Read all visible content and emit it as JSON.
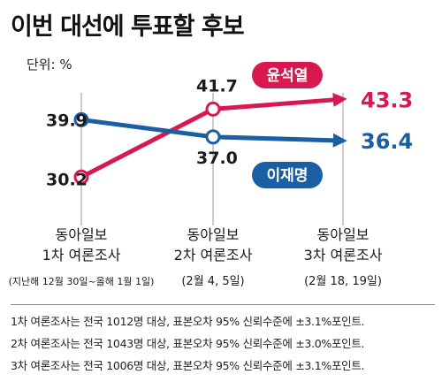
{
  "title": "이번 대선에 투표할 후보",
  "unit": "단위: %",
  "colors": {
    "yoon": "#d7194f",
    "lee": "#1a5fa3",
    "grid": "#999999",
    "text": "#1a1a1a"
  },
  "chart_data": {
    "type": "line",
    "categories": [
      {
        "line1": "동아일보",
        "line2": "1차 여론조사",
        "date": "(지난해 12월 30일~올해 1월 1일)"
      },
      {
        "line1": "동아일보",
        "line2": "2차 여론조사",
        "date": "(2월 4, 5일)"
      },
      {
        "line1": "동아일보",
        "line2": "3차 여론조사",
        "date": "(2월 18, 19일)"
      }
    ],
    "series": [
      {
        "name": "윤석열",
        "values": [
          30.2,
          41.7,
          43.3
        ],
        "labels": [
          "30.2",
          "41.7",
          "43.3"
        ],
        "color": "#d7194f"
      },
      {
        "name": "이재명",
        "values": [
          39.9,
          37.0,
          36.4
        ],
        "labels": [
          "39.9",
          "37.0",
          "36.4"
        ],
        "color": "#1a5fa3"
      }
    ],
    "ylim": [
      28,
      44
    ],
    "grid": false
  },
  "notes": [
    "1차 여론조사는 전국 1012명 대상, 표본오차 95% 신뢰수준에 ±3.1%포인트.",
    "2차 여론조사는 전국 1043명 대상, 표본오차 95% 신뢰수준에 ±3.0%포인트.",
    "3차 여론조사는 전국 1006명 대상, 표본오차 95% 신뢰수준에 ±3.1%포인트."
  ]
}
